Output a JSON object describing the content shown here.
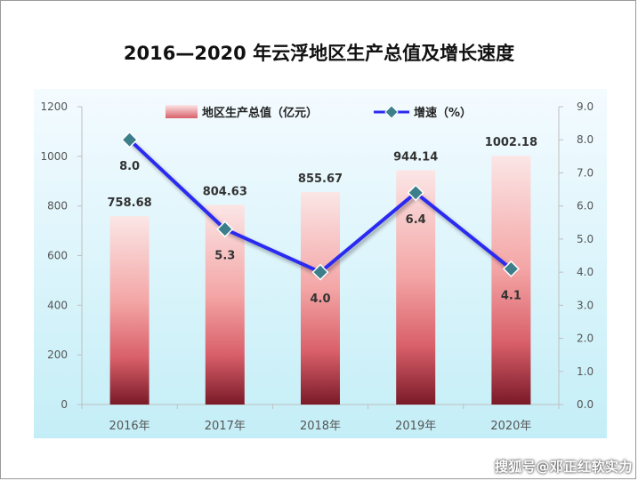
{
  "chart_data": {
    "type": "bar+line",
    "title": "2016—2020 年云浮地区生产总值及增长速度",
    "categories": [
      "2016年",
      "2017年",
      "2018年",
      "2019年",
      "2020年"
    ],
    "series": [
      {
        "name": "地区生产总值（亿元）",
        "type": "bar",
        "axis": "left",
        "values": [
          758.68,
          804.63,
          855.67,
          944.14,
          1002.18
        ],
        "labels": [
          "758.68",
          "804.63",
          "855.67",
          "944.14",
          "1002.18"
        ]
      },
      {
        "name": "增速（%）",
        "type": "line",
        "axis": "right",
        "values": [
          8.0,
          5.3,
          4.0,
          6.4,
          4.1
        ],
        "labels": [
          "8.0",
          "5.3",
          "4.0",
          "6.4",
          "4.1"
        ]
      }
    ],
    "y_left": {
      "range": [
        0,
        1200
      ],
      "ticks": [
        "0",
        "200",
        "400",
        "600",
        "800",
        "1000",
        "1200"
      ]
    },
    "y_right": {
      "range": [
        0,
        9
      ],
      "ticks": [
        "0.0",
        "1.0",
        "2.0",
        "3.0",
        "4.0",
        "5.0",
        "6.0",
        "7.0",
        "8.0",
        "9.0"
      ]
    },
    "legend_position": "top",
    "grid": false,
    "colors": {
      "bar_top": "#fbe6e6",
      "bar_mid": "#f08a8a",
      "bar_bottom": "#7a1a28",
      "line": "#2b2bf0",
      "marker": "#3c7f8a",
      "plot_bg_top": "#f4fbff",
      "plot_bg_bottom": "#c4eef7"
    }
  },
  "watermark": "搜狐号@邓正红软实力"
}
